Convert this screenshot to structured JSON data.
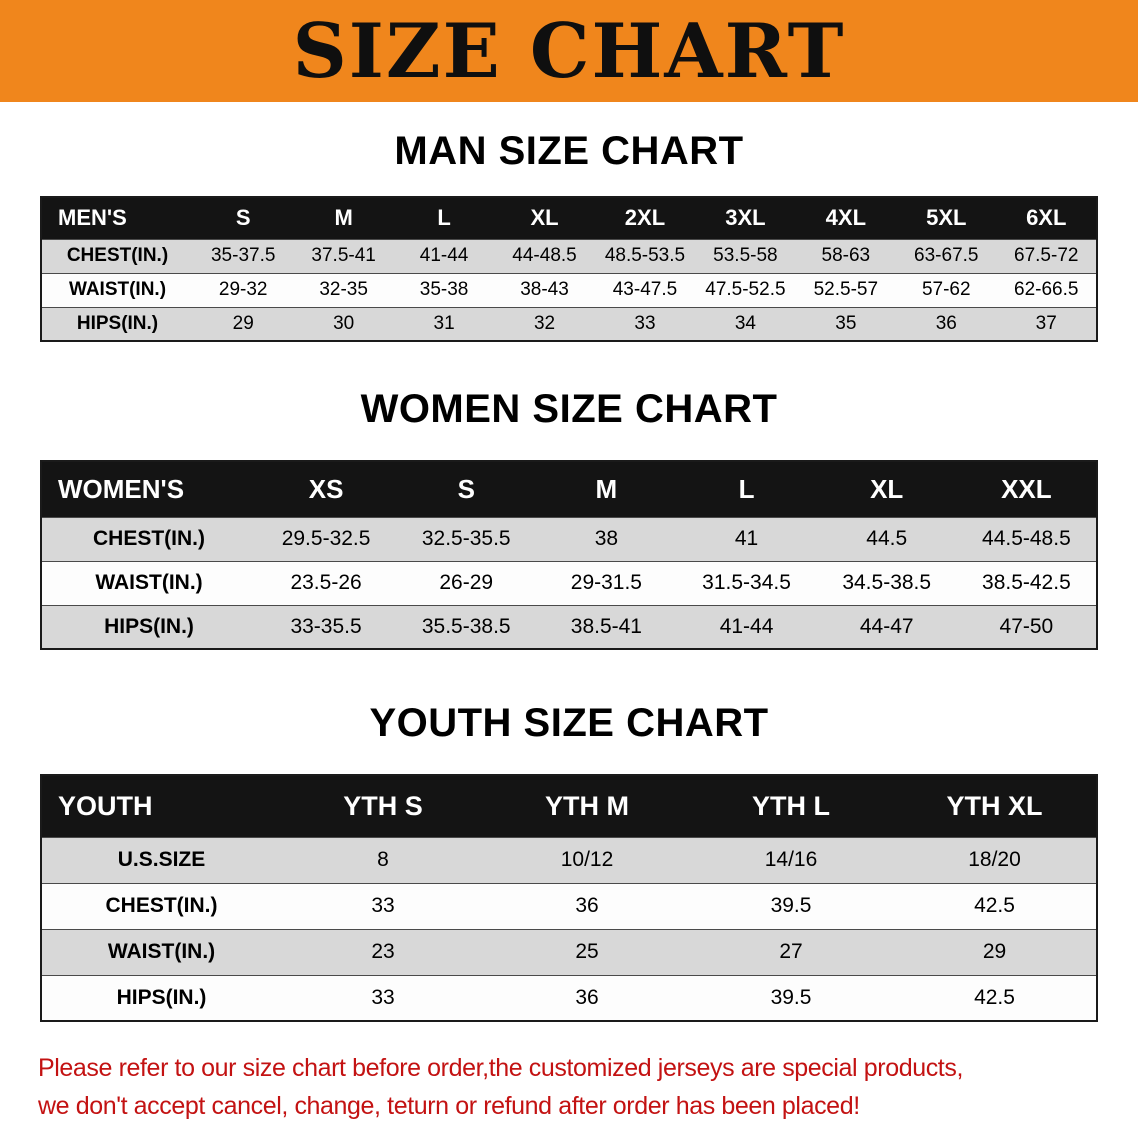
{
  "banner": {
    "title": "SIZE CHART"
  },
  "men": {
    "heading": "MAN SIZE CHART",
    "header": [
      "MEN'S",
      "S",
      "M",
      "L",
      "XL",
      "2XL",
      "3XL",
      "4XL",
      "5XL",
      "6XL"
    ],
    "rows": [
      {
        "label": "CHEST(IN.)",
        "values": [
          "35-37.5",
          "37.5-41",
          "41-44",
          "44-48.5",
          "48.5-53.5",
          "53.5-58",
          "58-63",
          "63-67.5",
          "67.5-72"
        ]
      },
      {
        "label": "WAIST(IN.)",
        "values": [
          "29-32",
          "32-35",
          "35-38",
          "38-43",
          "43-47.5",
          "47.5-52.5",
          "52.5-57",
          "57-62",
          "62-66.5"
        ]
      },
      {
        "label": "HIPS(IN.)",
        "values": [
          "29",
          "30",
          "31",
          "32",
          "33",
          "34",
          "35",
          "36",
          "37"
        ]
      }
    ]
  },
  "women": {
    "heading": "WOMEN SIZE CHART",
    "header": [
      "WOMEN'S",
      "XS",
      "S",
      "M",
      "L",
      "XL",
      "XXL"
    ],
    "rows": [
      {
        "label": "CHEST(IN.)",
        "values": [
          "29.5-32.5",
          "32.5-35.5",
          "38",
          "41",
          "44.5",
          "44.5-48.5"
        ]
      },
      {
        "label": "WAIST(IN.)",
        "values": [
          "23.5-26",
          "26-29",
          "29-31.5",
          "31.5-34.5",
          "34.5-38.5",
          "38.5-42.5"
        ]
      },
      {
        "label": "HIPS(IN.)",
        "values": [
          "33-35.5",
          "35.5-38.5",
          "38.5-41",
          "41-44",
          "44-47",
          "47-50"
        ]
      }
    ]
  },
  "youth": {
    "heading": "YOUTH SIZE CHART",
    "header": [
      "YOUTH",
      "YTH S",
      "YTH M",
      "YTH L",
      "YTH XL"
    ],
    "rows": [
      {
        "label": "U.S.SIZE",
        "values": [
          "8",
          "10/12",
          "14/16",
          "18/20"
        ]
      },
      {
        "label": "CHEST(IN.)",
        "values": [
          "33",
          "36",
          "39.5",
          "42.5"
        ]
      },
      {
        "label": "WAIST(IN.)",
        "values": [
          "23",
          "25",
          "27",
          "29"
        ]
      },
      {
        "label": "HIPS(IN.)",
        "values": [
          "33",
          "36",
          "39.5",
          "42.5"
        ]
      }
    ]
  },
  "footer": {
    "line1": "Please refer to our size chart before order,the customized jerseys are special products,",
    "line2": "we don't accept cancel, change, teturn or refund after order has been placed!"
  },
  "colors": {
    "banner_orange": "#F0861C",
    "header_black": "#141414",
    "row_gray": "#D8D8D8",
    "note_red": "#C31212"
  }
}
